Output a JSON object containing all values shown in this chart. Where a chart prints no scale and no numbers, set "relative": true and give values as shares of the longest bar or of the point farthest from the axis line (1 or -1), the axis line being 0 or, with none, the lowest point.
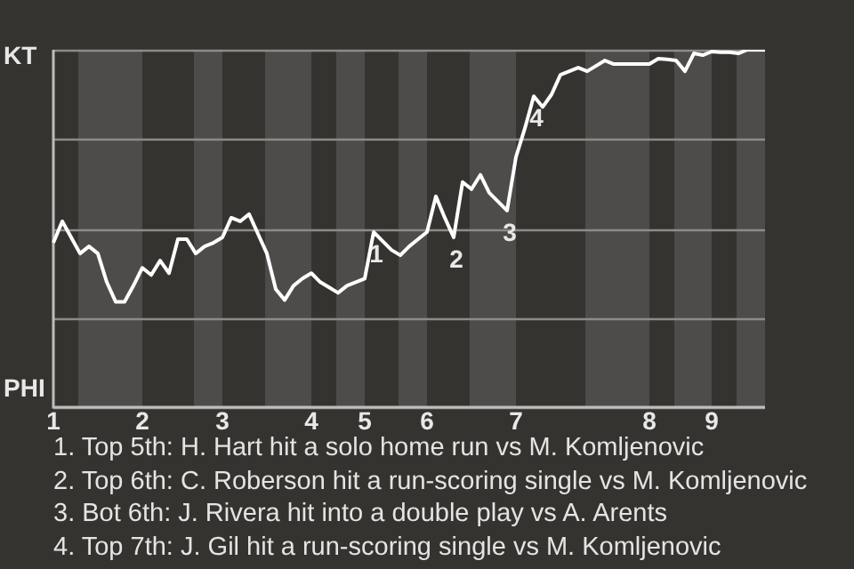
{
  "chart_data": {
    "type": "line",
    "relative": true,
    "categories": [
      "1",
      null,
      null,
      null,
      null,
      null,
      null,
      null,
      null,
      null,
      "2",
      null,
      null,
      null,
      null,
      null,
      null,
      null,
      null,
      "3",
      null,
      null,
      null,
      null,
      null,
      null,
      null,
      null,
      null,
      "4",
      null,
      null,
      null,
      null,
      null,
      "5",
      null,
      null,
      null,
      null,
      null,
      null,
      "6",
      null,
      null,
      null,
      null,
      null,
      null,
      null,
      null,
      null,
      "7",
      null,
      null,
      null,
      null,
      null,
      null,
      null,
      null,
      null,
      null,
      null,
      null,
      null,
      null,
      "8",
      null,
      null,
      null,
      null,
      null,
      null,
      "9",
      null,
      null,
      null,
      null,
      null,
      null
    ],
    "series": [
      {
        "color": "#ffffff",
        "values": [
          0.46,
          0.52,
          0.475,
          0.43,
          0.45,
          0.43,
          0.35,
          0.295,
          0.295,
          0.34,
          0.39,
          0.37,
          0.41,
          0.375,
          0.47,
          0.47,
          0.43,
          0.45,
          0.46,
          0.475,
          0.53,
          0.52,
          0.54,
          0.485,
          0.43,
          0.33,
          0.3,
          0.34,
          0.36,
          0.375,
          0.35,
          0.335,
          0.32,
          0.34,
          0.35,
          0.36,
          0.49,
          0.465,
          0.44,
          0.425,
          0.45,
          0.47,
          0.49,
          0.59,
          0.53,
          0.475,
          0.63,
          0.61,
          0.65,
          0.6,
          0.575,
          0.55,
          0.7,
          0.78,
          0.87,
          0.84,
          0.875,
          0.93,
          0.94,
          0.95,
          0.94,
          0.955,
          0.97,
          0.96,
          0.96,
          0.96,
          0.96,
          0.96,
          0.975,
          0.973,
          0.97,
          0.94,
          0.99,
          0.985,
          0.995,
          0.993,
          0.993,
          0.99,
          1,
          1,
          1
        ]
      }
    ],
    "grid": "y",
    "legend": false,
    "marker": "none",
    "line_style": "solid",
    "annotations": [
      "KT",
      "PHI",
      {
        "text": "1",
        "y": 0.49
      },
      {
        "text": "2",
        "y": 0.475
      },
      {
        "text": "3",
        "y": 0.55
      },
      {
        "text": "4",
        "y": 0.87
      },
      "1. Top 5th: H. Hart hit a solo home run vs M. Komljenovic",
      "2. Top 6th: C. Roberson hit a run-scoring single vs M. Komljenovic",
      "3. Bot 6th: J. Rivera hit into a double play vs A. Arents",
      "4. Top 7th: J. Gil hit a run-scoring single vs M. Komljenovic"
    ]
  }
}
